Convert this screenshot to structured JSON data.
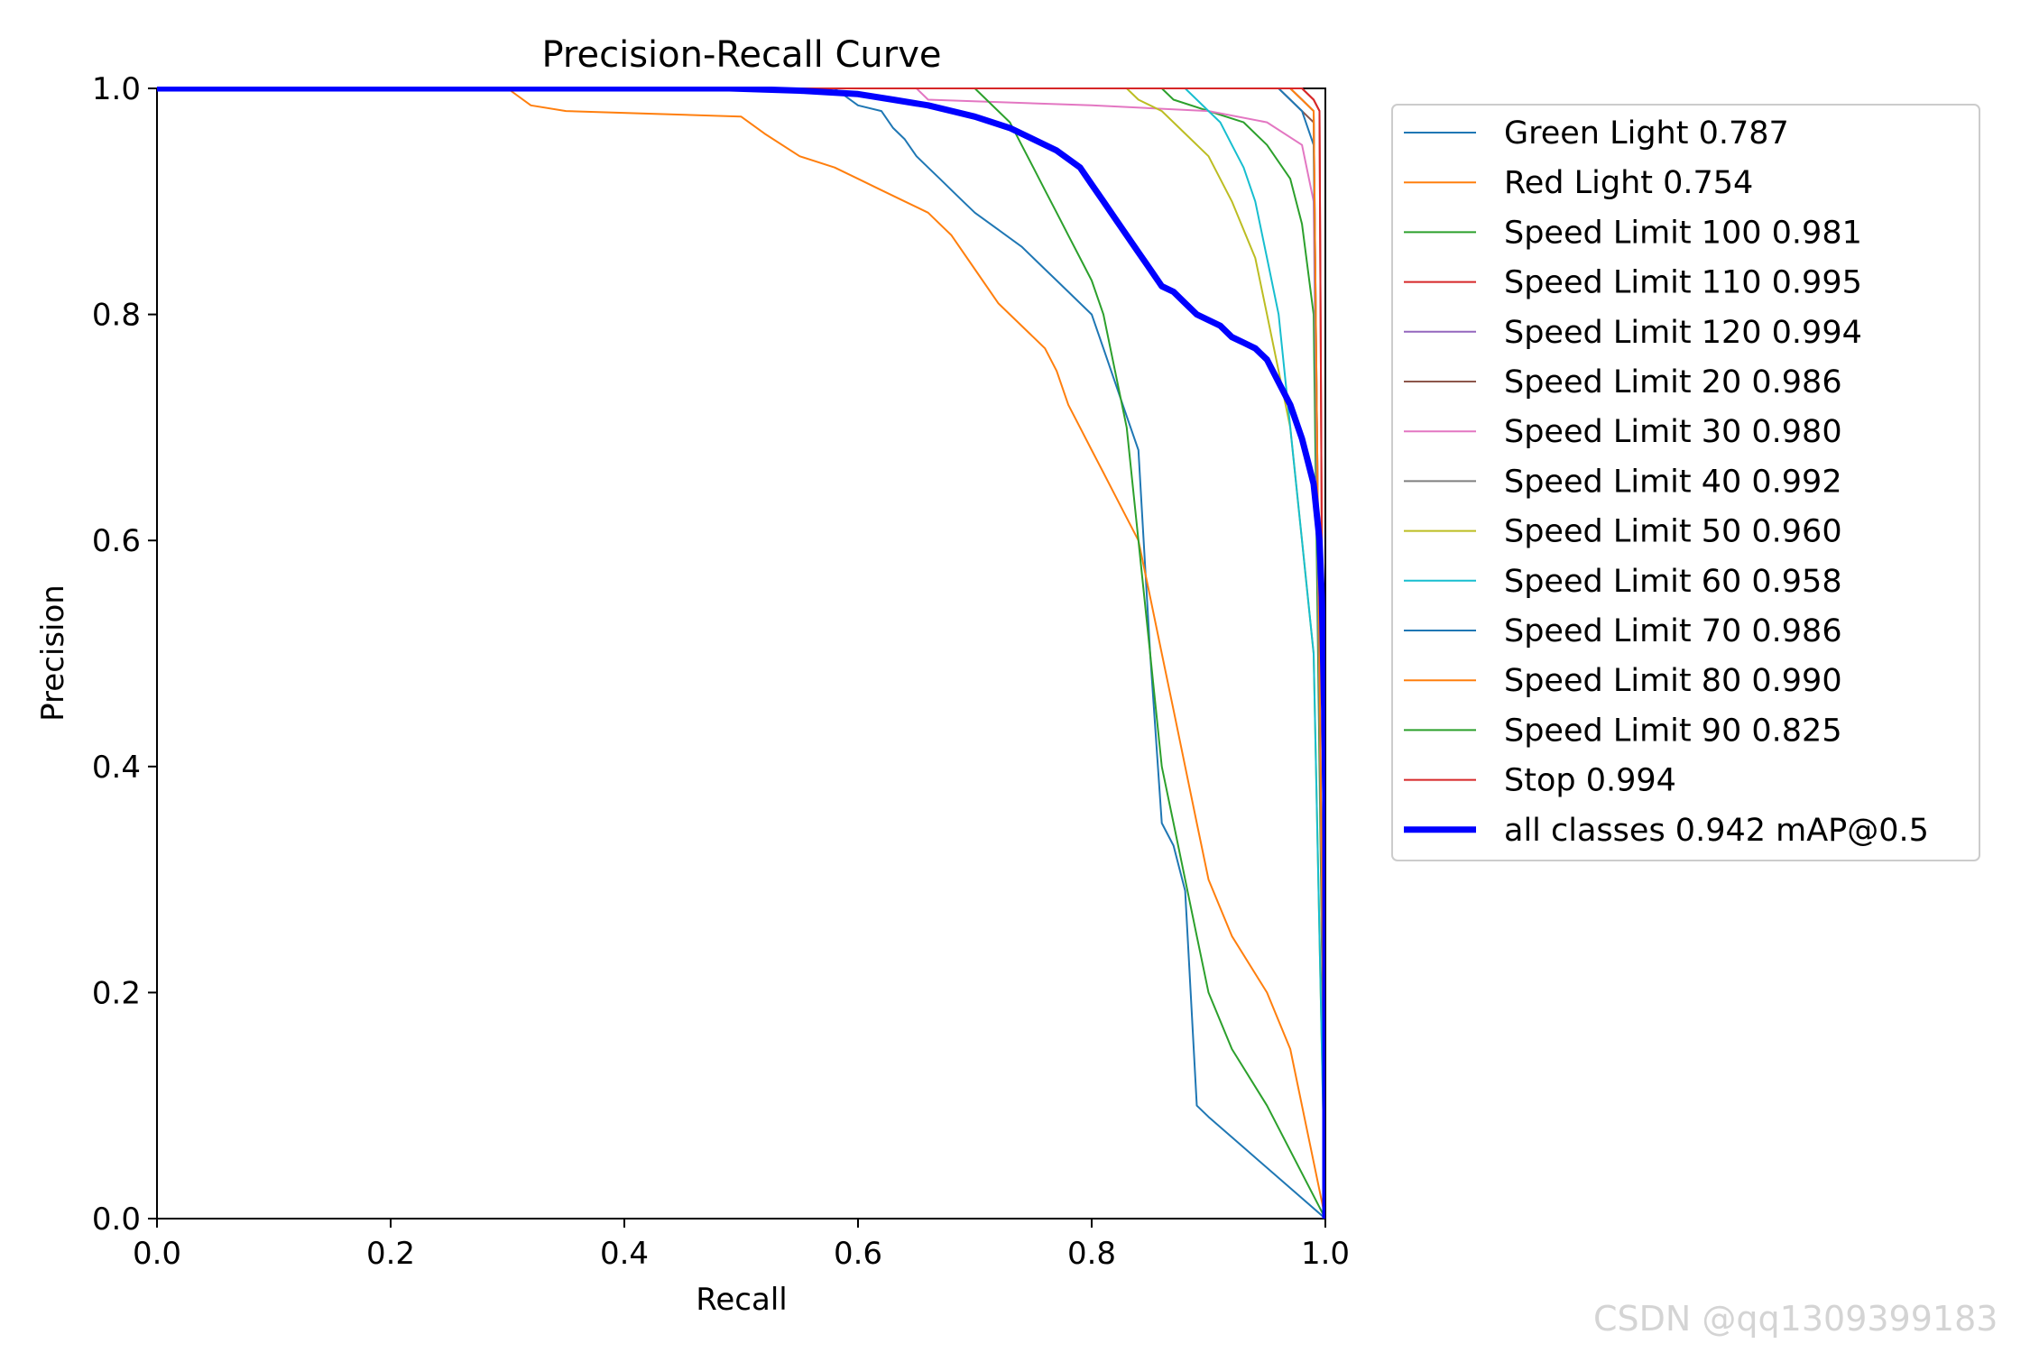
{
  "chart_data": {
    "type": "line",
    "title": "Precision-Recall Curve",
    "xlabel": "Recall",
    "ylabel": "Precision",
    "xlim": [
      0,
      1
    ],
    "ylim": [
      0,
      1
    ],
    "xticks": [
      "0.0",
      "0.2",
      "0.4",
      "0.6",
      "0.8",
      "1.0"
    ],
    "yticks": [
      "0.0",
      "0.2",
      "0.4",
      "0.6",
      "0.8",
      "1.0"
    ],
    "legend_position": "outside-right",
    "series": [
      {
        "name": "Green Light 0.787",
        "color": "#1f77b4",
        "width": 2,
        "points": [
          [
            0,
            1
          ],
          [
            0.58,
            1
          ],
          [
            0.6,
            0.985
          ],
          [
            0.62,
            0.98
          ],
          [
            0.63,
            0.965
          ],
          [
            0.64,
            0.955
          ],
          [
            0.65,
            0.94
          ],
          [
            0.66,
            0.93
          ],
          [
            0.67,
            0.92
          ],
          [
            0.68,
            0.91
          ],
          [
            0.69,
            0.9
          ],
          [
            0.7,
            0.89
          ],
          [
            0.72,
            0.875
          ],
          [
            0.74,
            0.86
          ],
          [
            0.75,
            0.85
          ],
          [
            0.76,
            0.84
          ],
          [
            0.77,
            0.83
          ],
          [
            0.78,
            0.82
          ],
          [
            0.79,
            0.81
          ],
          [
            0.8,
            0.8
          ],
          [
            0.81,
            0.77
          ],
          [
            0.82,
            0.74
          ],
          [
            0.83,
            0.71
          ],
          [
            0.84,
            0.68
          ],
          [
            0.85,
            0.5
          ],
          [
            0.86,
            0.35
          ],
          [
            0.87,
            0.33
          ],
          [
            0.88,
            0.29
          ],
          [
            0.89,
            0.1
          ],
          [
            0.9,
            0.09
          ],
          [
            1.0,
            0
          ]
        ]
      },
      {
        "name": "Red Light 0.754",
        "color": "#ff7f0e",
        "width": 2,
        "points": [
          [
            0,
            1
          ],
          [
            0.3,
            1
          ],
          [
            0.32,
            0.985
          ],
          [
            0.35,
            0.98
          ],
          [
            0.5,
            0.975
          ],
          [
            0.52,
            0.96
          ],
          [
            0.55,
            0.94
          ],
          [
            0.58,
            0.93
          ],
          [
            0.6,
            0.92
          ],
          [
            0.62,
            0.91
          ],
          [
            0.64,
            0.9
          ],
          [
            0.66,
            0.89
          ],
          [
            0.68,
            0.87
          ],
          [
            0.7,
            0.84
          ],
          [
            0.72,
            0.81
          ],
          [
            0.73,
            0.8
          ],
          [
            0.75,
            0.78
          ],
          [
            0.76,
            0.77
          ],
          [
            0.77,
            0.75
          ],
          [
            0.78,
            0.72
          ],
          [
            0.79,
            0.7
          ],
          [
            0.8,
            0.68
          ],
          [
            0.81,
            0.66
          ],
          [
            0.82,
            0.64
          ],
          [
            0.83,
            0.62
          ],
          [
            0.84,
            0.6
          ],
          [
            0.85,
            0.55
          ],
          [
            0.86,
            0.5
          ],
          [
            0.87,
            0.45
          ],
          [
            0.88,
            0.4
          ],
          [
            0.89,
            0.35
          ],
          [
            0.9,
            0.3
          ],
          [
            0.92,
            0.25
          ],
          [
            0.95,
            0.2
          ],
          [
            0.97,
            0.15
          ],
          [
            1.0,
            0
          ]
        ]
      },
      {
        "name": "Speed Limit 100 0.981",
        "color": "#2ca02c",
        "width": 2,
        "points": [
          [
            0,
            1
          ],
          [
            0.86,
            1
          ],
          [
            0.87,
            0.99
          ],
          [
            0.9,
            0.98
          ],
          [
            0.93,
            0.97
          ],
          [
            0.95,
            0.95
          ],
          [
            0.97,
            0.92
          ],
          [
            0.98,
            0.88
          ],
          [
            0.99,
            0.8
          ],
          [
            1.0,
            0
          ]
        ]
      },
      {
        "name": "Speed Limit 110 0.995",
        "color": "#d62728",
        "width": 2,
        "points": [
          [
            0,
            1
          ],
          [
            0.98,
            1
          ],
          [
            0.99,
            0.99
          ],
          [
            0.995,
            0.98
          ],
          [
            1.0,
            0
          ]
        ]
      },
      {
        "name": "Speed Limit 120 0.994",
        "color": "#9467bd",
        "width": 2,
        "points": [
          [
            0,
            1
          ],
          [
            0.97,
            1
          ],
          [
            0.98,
            0.99
          ],
          [
            0.99,
            0.98
          ],
          [
            1.0,
            0
          ]
        ]
      },
      {
        "name": "Speed Limit 20 0.986",
        "color": "#8c564b",
        "width": 2,
        "points": [
          [
            0,
            1
          ],
          [
            0.96,
            1
          ],
          [
            0.97,
            0.99
          ],
          [
            0.98,
            0.98
          ],
          [
            0.99,
            0.97
          ],
          [
            1.0,
            0
          ]
        ]
      },
      {
        "name": "Speed Limit 30 0.980",
        "color": "#e377c2",
        "width": 2,
        "points": [
          [
            0,
            1
          ],
          [
            0.65,
            1
          ],
          [
            0.66,
            0.99
          ],
          [
            0.8,
            0.985
          ],
          [
            0.9,
            0.98
          ],
          [
            0.95,
            0.97
          ],
          [
            0.98,
            0.95
          ],
          [
            0.99,
            0.9
          ],
          [
            1.0,
            0
          ]
        ]
      },
      {
        "name": "Speed Limit 40 0.992",
        "color": "#7f7f7f",
        "width": 2,
        "points": [
          [
            0,
            1
          ],
          [
            0.97,
            1
          ],
          [
            0.98,
            0.99
          ],
          [
            0.99,
            0.98
          ],
          [
            1.0,
            0
          ]
        ]
      },
      {
        "name": "Speed Limit 50 0.960",
        "color": "#bcbd22",
        "width": 2,
        "points": [
          [
            0,
            1
          ],
          [
            0.83,
            1
          ],
          [
            0.84,
            0.99
          ],
          [
            0.86,
            0.98
          ],
          [
            0.88,
            0.96
          ],
          [
            0.9,
            0.94
          ],
          [
            0.92,
            0.9
          ],
          [
            0.94,
            0.85
          ],
          [
            0.95,
            0.8
          ],
          [
            0.96,
            0.75
          ],
          [
            0.97,
            0.7
          ],
          [
            0.98,
            0.6
          ],
          [
            0.99,
            0.5
          ],
          [
            1.0,
            0
          ]
        ]
      },
      {
        "name": "Speed Limit 60 0.958",
        "color": "#17becf",
        "width": 2,
        "points": [
          [
            0,
            1
          ],
          [
            0.88,
            1
          ],
          [
            0.89,
            0.99
          ],
          [
            0.9,
            0.98
          ],
          [
            0.91,
            0.97
          ],
          [
            0.92,
            0.95
          ],
          [
            0.93,
            0.93
          ],
          [
            0.94,
            0.9
          ],
          [
            0.95,
            0.85
          ],
          [
            0.96,
            0.8
          ],
          [
            0.97,
            0.7
          ],
          [
            0.98,
            0.6
          ],
          [
            0.99,
            0.5
          ],
          [
            1.0,
            0
          ]
        ]
      },
      {
        "name": "Speed Limit 70 0.986",
        "color": "#1f77b4",
        "width": 2,
        "points": [
          [
            0,
            1
          ],
          [
            0.96,
            1
          ],
          [
            0.97,
            0.99
          ],
          [
            0.98,
            0.98
          ],
          [
            0.99,
            0.95
          ],
          [
            1.0,
            0
          ]
        ]
      },
      {
        "name": "Speed Limit 80 0.990",
        "color": "#ff7f0e",
        "width": 2,
        "points": [
          [
            0,
            1
          ],
          [
            0.97,
            1
          ],
          [
            0.98,
            0.99
          ],
          [
            0.99,
            0.98
          ],
          [
            1.0,
            0
          ]
        ]
      },
      {
        "name": "Speed Limit 90 0.825",
        "color": "#2ca02c",
        "width": 2,
        "points": [
          [
            0,
            1
          ],
          [
            0.7,
            1
          ],
          [
            0.71,
            0.99
          ],
          [
            0.72,
            0.98
          ],
          [
            0.73,
            0.97
          ],
          [
            0.74,
            0.95
          ],
          [
            0.75,
            0.93
          ],
          [
            0.76,
            0.91
          ],
          [
            0.77,
            0.89
          ],
          [
            0.78,
            0.87
          ],
          [
            0.79,
            0.85
          ],
          [
            0.8,
            0.83
          ],
          [
            0.81,
            0.8
          ],
          [
            0.82,
            0.75
          ],
          [
            0.83,
            0.7
          ],
          [
            0.84,
            0.6
          ],
          [
            0.85,
            0.5
          ],
          [
            0.86,
            0.4
          ],
          [
            0.87,
            0.35
          ],
          [
            0.88,
            0.3
          ],
          [
            0.89,
            0.25
          ],
          [
            0.9,
            0.2
          ],
          [
            0.92,
            0.15
          ],
          [
            0.95,
            0.1
          ],
          [
            1.0,
            0
          ]
        ]
      },
      {
        "name": "Stop 0.994",
        "color": "#d62728",
        "width": 2,
        "points": [
          [
            0,
            1
          ],
          [
            0.98,
            1
          ],
          [
            0.99,
            0.99
          ],
          [
            0.995,
            0.98
          ],
          [
            1.0,
            0
          ]
        ]
      },
      {
        "name": "all classes 0.942 mAP@0.5",
        "color": "#0000ff",
        "width": 7,
        "points": [
          [
            0,
            1
          ],
          [
            0.49,
            1
          ],
          [
            0.55,
            0.998
          ],
          [
            0.6,
            0.995
          ],
          [
            0.63,
            0.99
          ],
          [
            0.66,
            0.985
          ],
          [
            0.7,
            0.975
          ],
          [
            0.73,
            0.965
          ],
          [
            0.75,
            0.955
          ],
          [
            0.77,
            0.945
          ],
          [
            0.79,
            0.93
          ],
          [
            0.8,
            0.915
          ],
          [
            0.81,
            0.9
          ],
          [
            0.82,
            0.885
          ],
          [
            0.83,
            0.87
          ],
          [
            0.84,
            0.855
          ],
          [
            0.85,
            0.84
          ],
          [
            0.86,
            0.825
          ],
          [
            0.87,
            0.82
          ],
          [
            0.88,
            0.81
          ],
          [
            0.89,
            0.8
          ],
          [
            0.9,
            0.795
          ],
          [
            0.91,
            0.79
          ],
          [
            0.92,
            0.78
          ],
          [
            0.93,
            0.775
          ],
          [
            0.94,
            0.77
          ],
          [
            0.95,
            0.76
          ],
          [
            0.96,
            0.74
          ],
          [
            0.97,
            0.72
          ],
          [
            0.98,
            0.69
          ],
          [
            0.985,
            0.67
          ],
          [
            0.99,
            0.65
          ],
          [
            0.995,
            0.6
          ],
          [
            0.997,
            0.55
          ],
          [
            0.999,
            0.45
          ],
          [
            1.0,
            0.37
          ],
          [
            1.0,
            0
          ]
        ]
      }
    ]
  },
  "watermark": "CSDN @qq1309399183"
}
